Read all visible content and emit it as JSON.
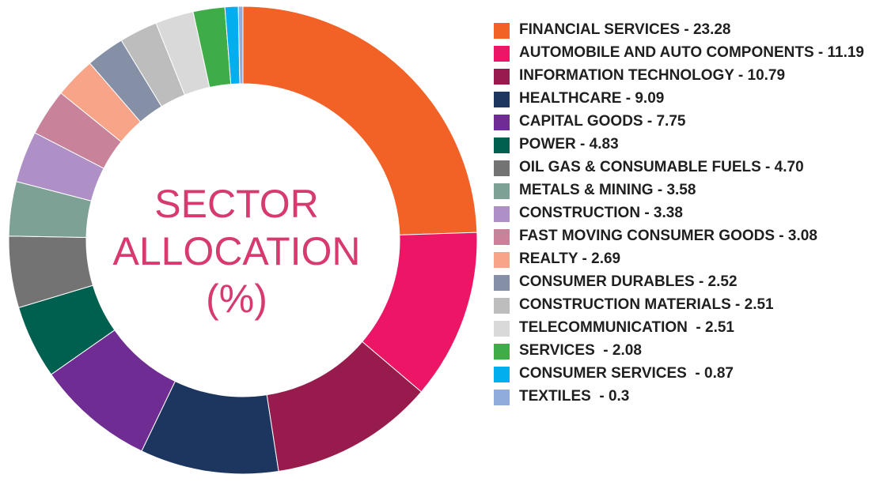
{
  "chart_data": {
    "type": "pie",
    "title_lines": [
      "SECTOR",
      "ALLOCATION",
      "(%)"
    ],
    "slices": [
      {
        "label": "FINANCIAL SERVICES - 23.28",
        "value": 23.28,
        "color": "#f26126"
      },
      {
        "label": "AUTOMOBILE AND AUTO COMPONENTS - 11.19",
        "value": 11.19,
        "color": "#ec1566"
      },
      {
        "label": "INFORMATION TECHNOLOGY - 10.79",
        "value": 10.79,
        "color": "#971b4c"
      },
      {
        "label": "HEALTHCARE - 9.09",
        "value": 9.09,
        "color": "#1c3660"
      },
      {
        "label": "CAPITAL GOODS - 7.75",
        "value": 7.75,
        "color": "#6f2d94"
      },
      {
        "label": "POWER - 4.83",
        "value": 4.83,
        "color": "#00604f"
      },
      {
        "label": "OIL GAS & CONSUMABLE FUELS - 4.70",
        "value": 4.7,
        "color": "#737373"
      },
      {
        "label": "METALS & MINING - 3.58",
        "value": 3.58,
        "color": "#7ea195"
      },
      {
        "label": "CONSTRUCTION - 3.38",
        "value": 3.38,
        "color": "#ae8fc6"
      },
      {
        "label": "FAST MOVING CONSUMER GOODS - 3.08",
        "value": 3.08,
        "color": "#c8839b"
      },
      {
        "label": "REALTY - 2.69",
        "value": 2.69,
        "color": "#f7a488"
      },
      {
        "label": "CONSUMER DURABLES - 2.52",
        "value": 2.52,
        "color": "#8590a6"
      },
      {
        "label": "CONSTRUCTION MATERIALS - 2.51",
        "value": 2.51,
        "color": "#bdbdbd"
      },
      {
        "label": "TELECOMMUNICATION  - 2.51",
        "value": 2.51,
        "color": "#d9d9d9"
      },
      {
        "label": "SERVICES  - 2.08",
        "value": 2.08,
        "color": "#3ead48"
      },
      {
        "label": "CONSUMER SERVICES  - 0.87",
        "value": 0.87,
        "color": "#03aeef"
      },
      {
        "label": "TEXTILES  - 0.3",
        "value": 0.3,
        "color": "#8facdc"
      }
    ],
    "legend": "right"
  }
}
